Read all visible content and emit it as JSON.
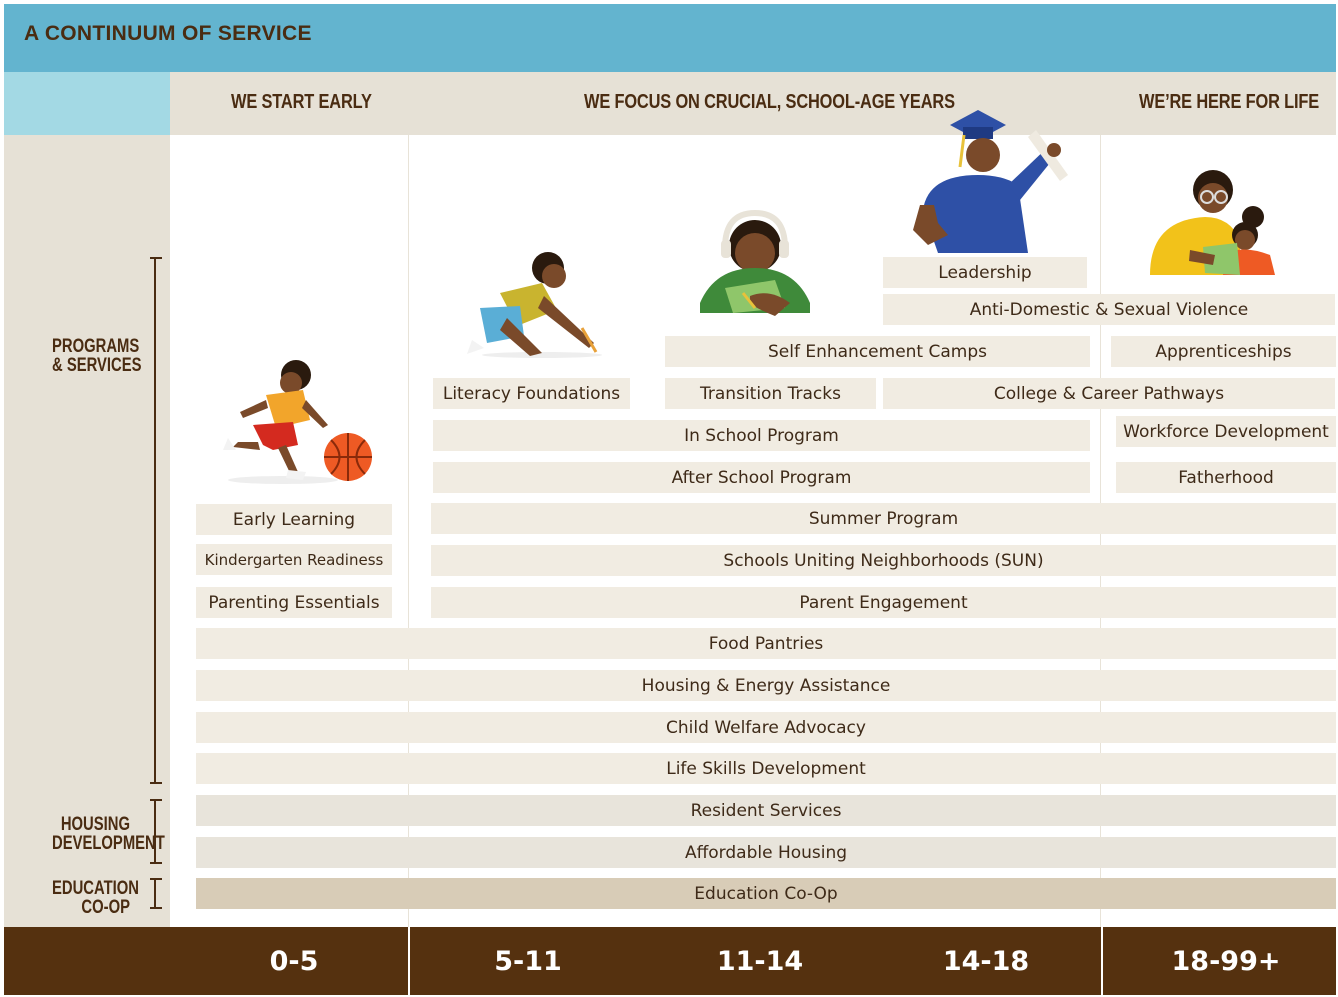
{
  "title": "A CONTINUUM OF SERVICE",
  "headers": {
    "start": "WE START EARLY",
    "focus": "WE FOCUS ON CRUCIAL, SCHOOL-AGE YEARS",
    "life": "WE’RE HERE FOR LIFE"
  },
  "side": {
    "programs": [
      "PROGRAMS",
      "& SERVICES"
    ],
    "housing": [
      "HOUSING",
      "DEVELOPMENT"
    ],
    "education": [
      "EDUCATION",
      "CO-OP"
    ]
  },
  "programs": {
    "leadership": "Leadership",
    "anti_violence": "Anti-Domestic & Sexual Violence",
    "self_enhancement": "Self Enhancement Camps",
    "apprenticeships": "Apprenticeships",
    "literacy": "Literacy Foundations",
    "transition": "Transition Tracks",
    "college_career": "College & Career Pathways",
    "in_school": "In School Program",
    "workforce": "Workforce Development",
    "after_school": "After School Program",
    "fatherhood": "Fatherhood",
    "early_learning": "Early Learning",
    "summer": "Summer Program",
    "kindergarten": "Kindergarten Readiness",
    "sun": "Schools Uniting Neighborhoods (SUN)",
    "parenting": "Parenting Essentials",
    "parent_engagement": "Parent Engagement",
    "food": "Food Pantries",
    "housing_energy": "Housing & Energy Assistance",
    "child_welfare": "Child Welfare Advocacy",
    "life_skills": "Life Skills Development"
  },
  "housing": {
    "resident": "Resident Services",
    "affordable": "Affordable Housing"
  },
  "education": {
    "coop": "Education Co-Op"
  },
  "ages": [
    "0-5",
    "5-11",
    "11-14",
    "14-18",
    "18-99+"
  ],
  "colors": {
    "title_bar": "#63b4cf",
    "header_accent": "#a3d9e4",
    "header_band": "#e6e1d6",
    "bar": "#f1ece2",
    "housing_bar": "#e8e4db",
    "education_bar": "#d8ccb7",
    "footer": "#55310f",
    "text": "#4a2c12"
  },
  "illustrations": [
    "toddler-with-basketball-icon",
    "child-drawing-icon",
    "student-with-headphones-icon",
    "graduate-with-diploma-icon",
    "parent-and-child-reading-icon"
  ]
}
